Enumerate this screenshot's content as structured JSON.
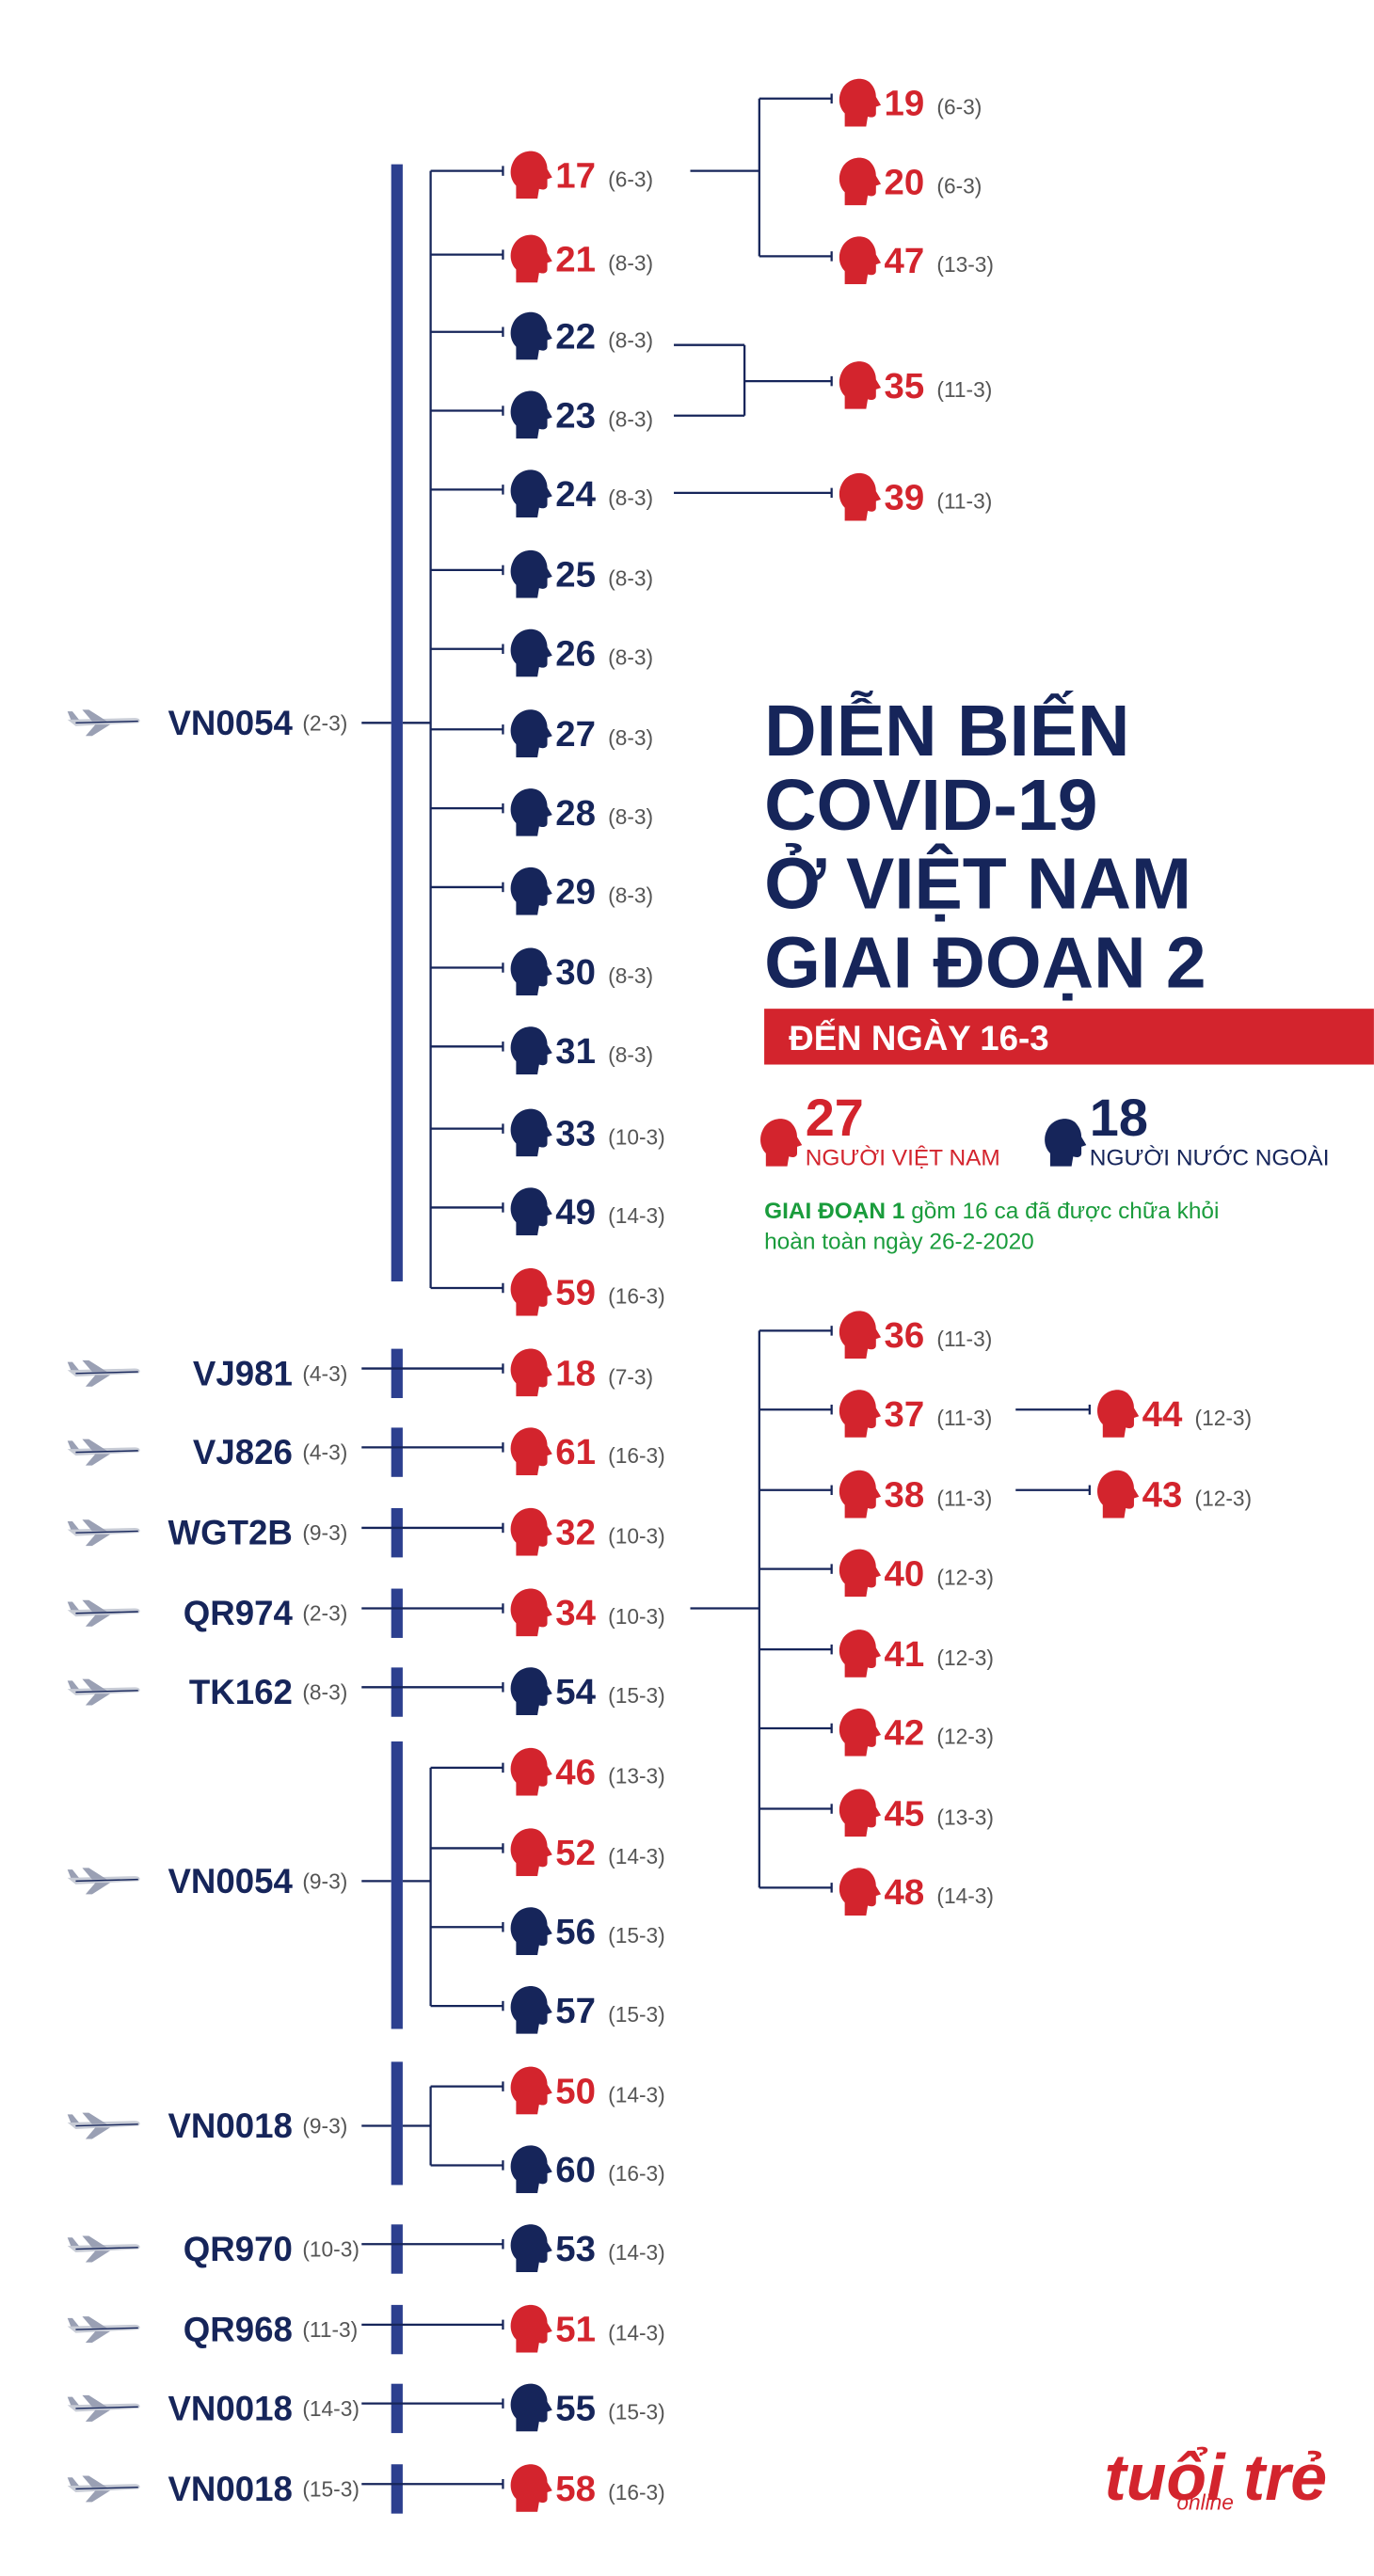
{
  "title": [
    "DIỄN BIẾN",
    "COVID-19",
    "Ở VIỆT NAM",
    "GIAI ĐOẠN 2"
  ],
  "banner": "ĐẾN NGÀY 16-3",
  "summary": [
    {
      "count": "27",
      "label": "NGƯỜI VIỆT NAM",
      "color": "#d3242d"
    },
    {
      "count": "18",
      "label": "NGƯỜI NƯỚC NGOÀI",
      "color": "#16255a"
    }
  ],
  "note": {
    "bold": "GIAI ĐOẠN 1",
    "line1": " gồm 16 ca đã được chữa khỏi",
    "line2": "hoàn toàn ngày 26-2-2020"
  },
  "logo": {
    "main": "tuổi trẻ",
    "sub": "online"
  },
  "flights": [
    {
      "code": "VN0054",
      "date": "(2-3)",
      "cases": [
        {
          "id": "17",
          "date": "(6-3)",
          "color": "#d3242d"
        },
        {
          "id": "21",
          "date": "(8-3)",
          "color": "#d3242d"
        },
        {
          "id": "22",
          "date": "(8-3)",
          "color": "#16255a"
        },
        {
          "id": "23",
          "date": "(8-3)",
          "color": "#16255a"
        },
        {
          "id": "24",
          "date": "(8-3)",
          "color": "#16255a"
        },
        {
          "id": "25",
          "date": "(8-3)",
          "color": "#16255a"
        },
        {
          "id": "26",
          "date": "(8-3)",
          "color": "#16255a"
        },
        {
          "id": "27",
          "date": "(8-3)",
          "color": "#16255a"
        },
        {
          "id": "28",
          "date": "(8-3)",
          "color": "#16255a"
        },
        {
          "id": "29",
          "date": "(8-3)",
          "color": "#16255a"
        },
        {
          "id": "30",
          "date": "(8-3)",
          "color": "#16255a"
        },
        {
          "id": "31",
          "date": "(8-3)",
          "color": "#16255a"
        },
        {
          "id": "33",
          "date": "(10-3)",
          "color": "#16255a"
        },
        {
          "id": "49",
          "date": "(14-3)",
          "color": "#16255a"
        },
        {
          "id": "59",
          "date": "(16-3)",
          "color": "#d3242d"
        }
      ]
    },
    {
      "code": "VJ981",
      "date": "(4-3)",
      "cases": [
        {
          "id": "18",
          "date": "(7-3)",
          "color": "#d3242d"
        }
      ]
    },
    {
      "code": "VJ826",
      "date": "(4-3)",
      "cases": [
        {
          "id": "61",
          "date": "(16-3)",
          "color": "#d3242d"
        }
      ]
    },
    {
      "code": "WGT2B",
      "date": "(9-3)",
      "cases": [
        {
          "id": "32",
          "date": "(10-3)",
          "color": "#d3242d"
        }
      ]
    },
    {
      "code": "QR974",
      "date": "(2-3)",
      "cases": [
        {
          "id": "34",
          "date": "(10-3)",
          "color": "#d3242d"
        }
      ]
    },
    {
      "code": "TK162",
      "date": "(8-3)",
      "cases": [
        {
          "id": "54",
          "date": "(15-3)",
          "color": "#16255a"
        }
      ]
    },
    {
      "code": "VN0054",
      "date": "(9-3)",
      "cases": [
        {
          "id": "46",
          "date": "(13-3)",
          "color": "#d3242d"
        },
        {
          "id": "52",
          "date": "(14-3)",
          "color": "#d3242d"
        },
        {
          "id": "56",
          "date": "(15-3)",
          "color": "#16255a"
        },
        {
          "id": "57",
          "date": "(15-3)",
          "color": "#16255a"
        }
      ]
    },
    {
      "code": "VN0018",
      "date": "(9-3)",
      "cases": [
        {
          "id": "50",
          "date": "(14-3)",
          "color": "#d3242d"
        },
        {
          "id": "60",
          "date": "(16-3)",
          "color": "#16255a"
        }
      ]
    },
    {
      "code": "QR970",
      "date": "(10-3)",
      "cases": [
        {
          "id": "53",
          "date": "(14-3)",
          "color": "#16255a"
        }
      ]
    },
    {
      "code": "QR968",
      "date": "(11-3)",
      "cases": [
        {
          "id": "51",
          "date": "(14-3)",
          "color": "#d3242d"
        }
      ]
    },
    {
      "code": "VN0018",
      "date": "(14-3)",
      "cases": [
        {
          "id": "55",
          "date": "(15-3)",
          "color": "#16255a"
        }
      ]
    },
    {
      "code": "VN0018",
      "date": "(15-3)",
      "cases": [
        {
          "id": "58",
          "date": "(16-3)",
          "color": "#d3242d"
        }
      ]
    }
  ],
  "secondary": [
    {
      "id": "19",
      "date": "(6-3)",
      "color": "#d3242d"
    },
    {
      "id": "20",
      "date": "(6-3)",
      "color": "#d3242d"
    },
    {
      "id": "47",
      "date": "(13-3)",
      "color": "#d3242d"
    },
    {
      "id": "35",
      "date": "(11-3)",
      "color": "#d3242d"
    },
    {
      "id": "39",
      "date": "(11-3)",
      "color": "#d3242d"
    },
    {
      "id": "36",
      "date": "(11-3)",
      "color": "#d3242d"
    },
    {
      "id": "37",
      "date": "(11-3)",
      "color": "#d3242d"
    },
    {
      "id": "38",
      "date": "(11-3)",
      "color": "#d3242d"
    },
    {
      "id": "40",
      "date": "(12-3)",
      "color": "#d3242d"
    },
    {
      "id": "41",
      "date": "(12-3)",
      "color": "#d3242d"
    },
    {
      "id": "42",
      "date": "(12-3)",
      "color": "#d3242d"
    },
    {
      "id": "45",
      "date": "(13-3)",
      "color": "#d3242d"
    },
    {
      "id": "48",
      "date": "(14-3)",
      "color": "#d3242d"
    },
    {
      "id": "44",
      "date": "(12-3)",
      "color": "#d3242d"
    },
    {
      "id": "43",
      "date": "(12-3)",
      "color": "#d3242d"
    }
  ]
}
